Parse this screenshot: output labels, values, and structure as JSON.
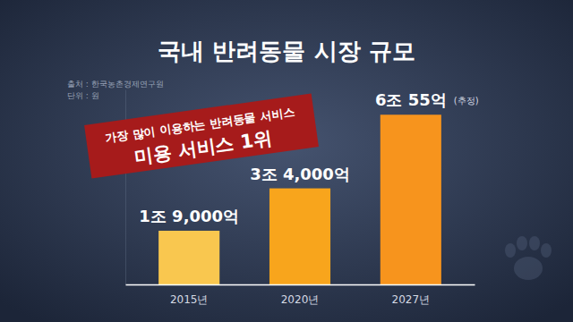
{
  "chart_data": {
    "type": "bar",
    "title": "국내 반려동물 시장 규모",
    "source": "출처 : 한국농촌경제연구원",
    "unit": "단위 : 원",
    "banner_lines": [
      "가장 많이 이용하는 반려동물 서비스",
      "미용 서비스 1위"
    ],
    "estimate_note": "(추정)",
    "categories": [
      "2015년",
      "2020년",
      "2027년"
    ],
    "values": [
      19000,
      34000,
      60055
    ],
    "value_labels": [
      "1조 9,000억",
      "3조 4,000억",
      "6조 55억"
    ],
    "colors": [
      "#f9c74f",
      "#f8a51c",
      "#f7941d"
    ],
    "ylim": [
      0,
      69000
    ],
    "yticks": [
      0
    ],
    "data_labels": true,
    "tick_labels": "x",
    "grid": false
  }
}
